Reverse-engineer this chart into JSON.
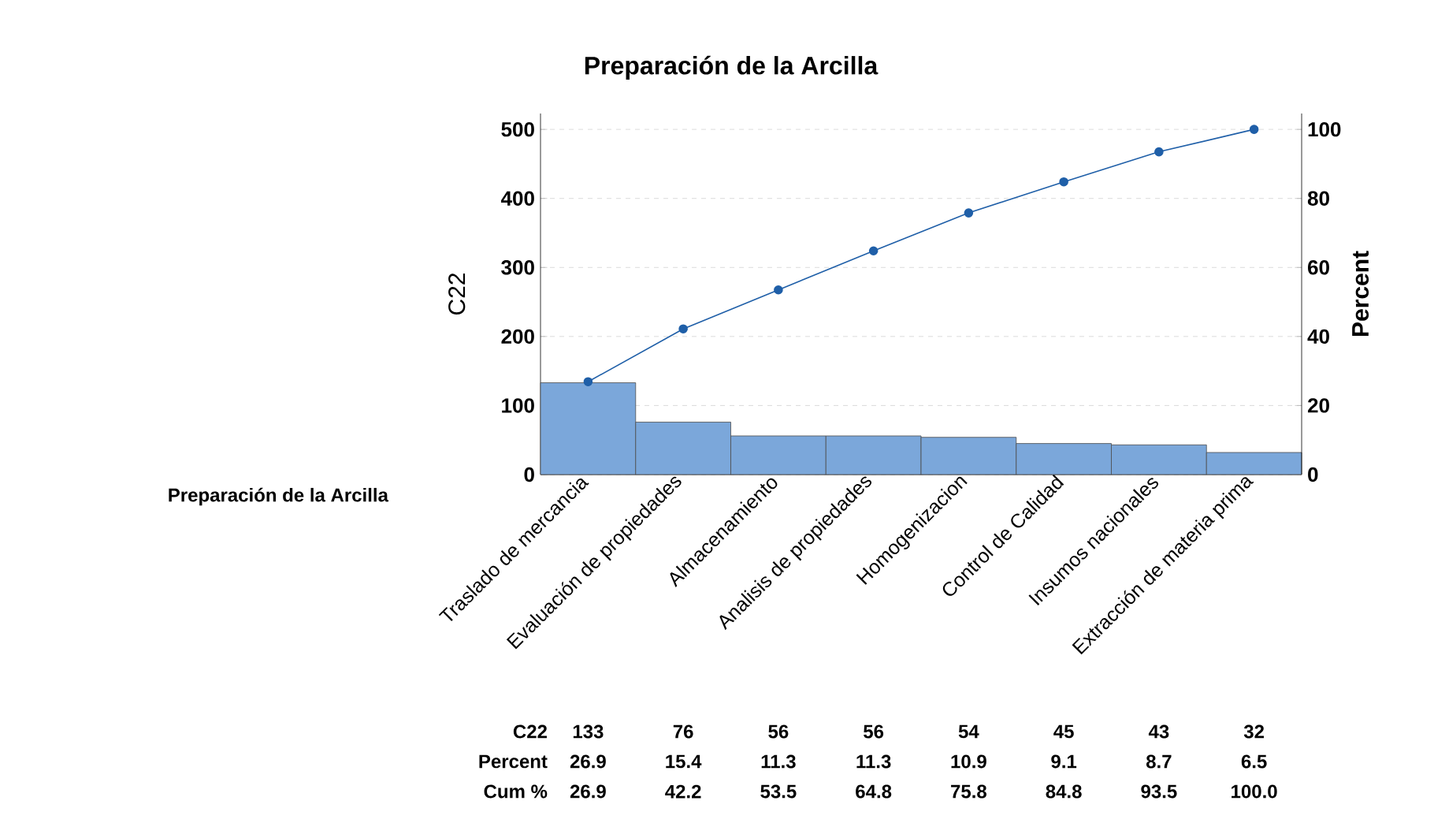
{
  "chart_data": {
    "type": "bar",
    "title": "Preparación de la Arcilla",
    "xlabel": "Preparación de la Arcilla",
    "ylabel": "C22",
    "y2label": "Percent",
    "categories": [
      "Traslado de mercancia",
      "Evaluación de propiedades",
      "Almacenamiento",
      "Analisis de propiedades",
      "Homogenizacion",
      "Control de Calidad",
      "Insumos nacionales",
      "Extracción de materia prima"
    ],
    "series": [
      {
        "color": "#7ba7da",
        "values": [
          133,
          76,
          56,
          56,
          54,
          45,
          43,
          32
        ],
        "value_labels": [
          "133",
          "76",
          "56",
          "56",
          "54",
          "45",
          "43",
          "32"
        ]
      },
      {
        "type": "line",
        "axis": "y2",
        "color": "#1f5fa8",
        "values": [
          26.9,
          42.2,
          53.5,
          64.8,
          75.8,
          84.8,
          93.5,
          100.0
        ],
        "value_labels": [
          "26.9",
          "42.2",
          "53.5",
          "64.8",
          "75.8",
          "84.8",
          "93.5",
          "100.0"
        ]
      }
    ],
    "annotations": [
      "C22",
      "Percent",
      "Cum %",
      "26.9",
      "15.4",
      "11.3",
      "11.3",
      "10.9",
      "9.1",
      "8.7",
      "6.5"
    ],
    "ylim": [
      0,
      523
    ],
    "yticks": [
      0,
      100,
      200,
      300,
      400,
      500
    ],
    "y2lim": [
      0,
      104.6
    ],
    "y2ticks": [
      0,
      20,
      40,
      60,
      80,
      100
    ],
    "grid": "y",
    "marker": "circle",
    "line_style": "solid"
  }
}
